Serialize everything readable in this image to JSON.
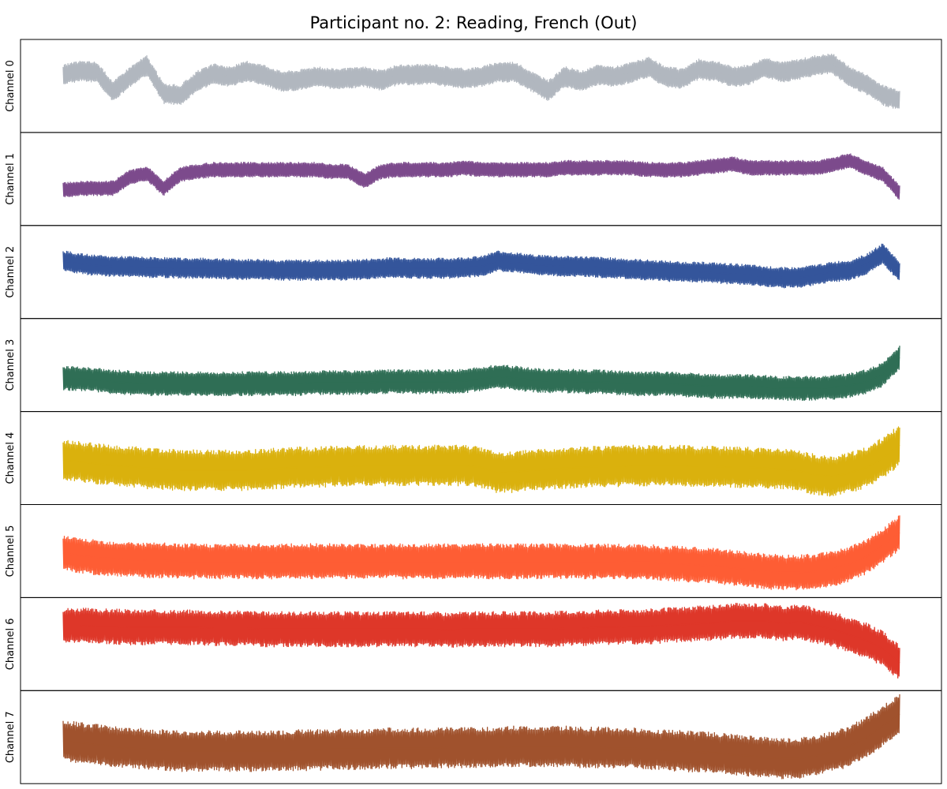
{
  "chart_data": {
    "type": "line",
    "title": "Participant no. 2: Reading, French (Out)",
    "xlabel": "",
    "ylabel": "",
    "grid": false,
    "legend": "none",
    "ticks": "hidden",
    "x": [
      0,
      2,
      4,
      6,
      8,
      10,
      12,
      14,
      16,
      18,
      20,
      22,
      24,
      26,
      28,
      30,
      32,
      34,
      36,
      38,
      40,
      42,
      44,
      46,
      48,
      50,
      52,
      54,
      56,
      58,
      60,
      62,
      64,
      66,
      68,
      70,
      72,
      74,
      76,
      78,
      80,
      82,
      84,
      86,
      88,
      90,
      92,
      94,
      96,
      98,
      100
    ],
    "series": [
      {
        "name": "Channel 0",
        "color": "#b1b7bf",
        "band": 0.22,
        "values": [
          0.62,
          0.66,
          0.65,
          0.44,
          0.6,
          0.72,
          0.42,
          0.4,
          0.55,
          0.63,
          0.6,
          0.66,
          0.62,
          0.55,
          0.56,
          0.6,
          0.58,
          0.58,
          0.6,
          0.56,
          0.62,
          0.62,
          0.63,
          0.6,
          0.58,
          0.6,
          0.65,
          0.65,
          0.55,
          0.45,
          0.6,
          0.55,
          0.62,
          0.6,
          0.65,
          0.7,
          0.6,
          0.58,
          0.68,
          0.66,
          0.6,
          0.62,
          0.7,
          0.65,
          0.68,
          0.72,
          0.74,
          0.6,
          0.52,
          0.4,
          0.35
        ]
      },
      {
        "name": "Channel 1",
        "color": "#7c4a8c",
        "band": 0.16,
        "values": [
          0.38,
          0.4,
          0.4,
          0.4,
          0.52,
          0.56,
          0.4,
          0.55,
          0.58,
          0.6,
          0.6,
          0.6,
          0.6,
          0.6,
          0.6,
          0.6,
          0.58,
          0.58,
          0.48,
          0.58,
          0.6,
          0.6,
          0.6,
          0.6,
          0.62,
          0.6,
          0.6,
          0.6,
          0.6,
          0.6,
          0.62,
          0.62,
          0.62,
          0.62,
          0.62,
          0.6,
          0.6,
          0.6,
          0.62,
          0.64,
          0.66,
          0.62,
          0.62,
          0.62,
          0.62,
          0.62,
          0.65,
          0.7,
          0.62,
          0.55,
          0.35
        ]
      },
      {
        "name": "Channel 2",
        "color": "#34559b",
        "band": 0.22,
        "values": [
          0.62,
          0.59,
          0.57,
          0.56,
          0.56,
          0.55,
          0.55,
          0.54,
          0.54,
          0.54,
          0.53,
          0.53,
          0.53,
          0.52,
          0.52,
          0.52,
          0.52,
          0.52,
          0.53,
          0.54,
          0.55,
          0.54,
          0.54,
          0.54,
          0.55,
          0.56,
          0.62,
          0.6,
          0.58,
          0.57,
          0.56,
          0.56,
          0.55,
          0.54,
          0.53,
          0.52,
          0.51,
          0.5,
          0.5,
          0.49,
          0.48,
          0.47,
          0.45,
          0.44,
          0.44,
          0.47,
          0.5,
          0.52,
          0.58,
          0.7,
          0.5
        ]
      },
      {
        "name": "Channel 3",
        "color": "#2f6e55",
        "band": 0.26,
        "values": [
          0.36,
          0.35,
          0.34,
          0.32,
          0.31,
          0.3,
          0.3,
          0.3,
          0.3,
          0.3,
          0.3,
          0.3,
          0.3,
          0.3,
          0.3,
          0.31,
          0.31,
          0.31,
          0.31,
          0.32,
          0.32,
          0.32,
          0.32,
          0.32,
          0.33,
          0.35,
          0.38,
          0.36,
          0.34,
          0.33,
          0.33,
          0.32,
          0.32,
          0.31,
          0.3,
          0.3,
          0.3,
          0.29,
          0.28,
          0.27,
          0.27,
          0.27,
          0.26,
          0.25,
          0.25,
          0.25,
          0.26,
          0.28,
          0.32,
          0.4,
          0.58
        ]
      },
      {
        "name": "Channel 4",
        "color": "#dab10d",
        "band": 0.44,
        "values": [
          0.48,
          0.46,
          0.44,
          0.42,
          0.41,
          0.39,
          0.38,
          0.37,
          0.37,
          0.37,
          0.37,
          0.37,
          0.38,
          0.39,
          0.4,
          0.4,
          0.41,
          0.41,
          0.42,
          0.42,
          0.42,
          0.42,
          0.42,
          0.42,
          0.42,
          0.4,
          0.34,
          0.35,
          0.37,
          0.38,
          0.39,
          0.4,
          0.41,
          0.41,
          0.42,
          0.42,
          0.42,
          0.42,
          0.41,
          0.41,
          0.4,
          0.4,
          0.39,
          0.38,
          0.36,
          0.32,
          0.3,
          0.34,
          0.4,
          0.5,
          0.64
        ]
      },
      {
        "name": "Channel 5",
        "color": "#fe5d34",
        "band": 0.38,
        "values": [
          0.48,
          0.45,
          0.43,
          0.42,
          0.41,
          0.4,
          0.4,
          0.39,
          0.39,
          0.39,
          0.39,
          0.39,
          0.39,
          0.39,
          0.39,
          0.39,
          0.39,
          0.39,
          0.39,
          0.39,
          0.39,
          0.39,
          0.39,
          0.39,
          0.39,
          0.39,
          0.39,
          0.39,
          0.39,
          0.39,
          0.39,
          0.39,
          0.39,
          0.39,
          0.38,
          0.38,
          0.37,
          0.36,
          0.35,
          0.34,
          0.32,
          0.3,
          0.28,
          0.27,
          0.27,
          0.28,
          0.31,
          0.36,
          0.44,
          0.56,
          0.7
        ]
      },
      {
        "name": "Channel 6",
        "color": "#de3729",
        "band": 0.38,
        "values": [
          0.7,
          0.7,
          0.69,
          0.69,
          0.68,
          0.68,
          0.68,
          0.68,
          0.68,
          0.67,
          0.67,
          0.67,
          0.66,
          0.66,
          0.66,
          0.66,
          0.66,
          0.66,
          0.66,
          0.66,
          0.66,
          0.66,
          0.66,
          0.65,
          0.66,
          0.66,
          0.66,
          0.66,
          0.66,
          0.66,
          0.67,
          0.67,
          0.68,
          0.68,
          0.69,
          0.69,
          0.7,
          0.71,
          0.72,
          0.73,
          0.75,
          0.75,
          0.75,
          0.72,
          0.74,
          0.7,
          0.66,
          0.6,
          0.54,
          0.45,
          0.3
        ]
      },
      {
        "name": "Channel 7",
        "color": "#a0522d",
        "band": 0.44,
        "values": [
          0.46,
          0.44,
          0.42,
          0.4,
          0.38,
          0.37,
          0.36,
          0.35,
          0.35,
          0.35,
          0.35,
          0.35,
          0.35,
          0.35,
          0.36,
          0.36,
          0.37,
          0.37,
          0.37,
          0.38,
          0.38,
          0.38,
          0.38,
          0.39,
          0.39,
          0.39,
          0.39,
          0.4,
          0.4,
          0.4,
          0.4,
          0.39,
          0.39,
          0.38,
          0.38,
          0.37,
          0.36,
          0.35,
          0.34,
          0.33,
          0.31,
          0.3,
          0.28,
          0.27,
          0.27,
          0.3,
          0.34,
          0.4,
          0.5,
          0.62,
          0.75
        ]
      }
    ]
  }
}
